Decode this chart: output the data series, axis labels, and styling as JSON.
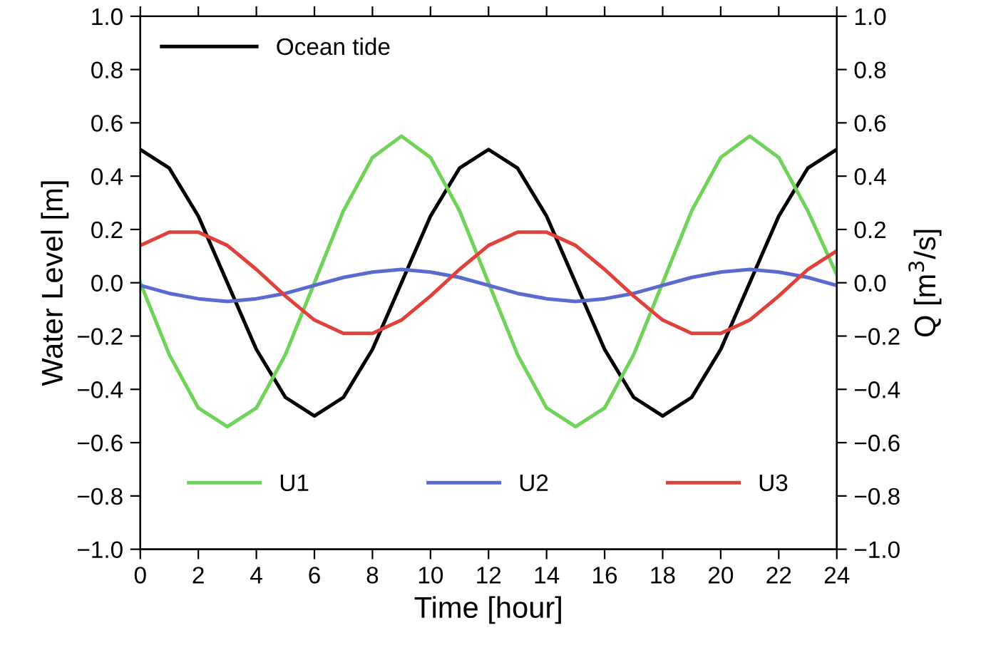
{
  "chart_data": {
    "type": "line",
    "xlabel": "Time [hour]",
    "ylabel": "Water Level [m]",
    "y2label": "Q [m$^{3}$/s]",
    "x": [
      0,
      1,
      2,
      3,
      4,
      5,
      6,
      7,
      8,
      9,
      10,
      11,
      12,
      13,
      14,
      15,
      16,
      17,
      18,
      19,
      20,
      21,
      22,
      23,
      24
    ],
    "series": [
      {
        "name": "Ocean tide",
        "color": "#000000",
        "values": [
          0.5,
          0.43,
          0.25,
          0,
          -0.25,
          -0.43,
          -0.5,
          -0.43,
          -0.25,
          0,
          0.25,
          0.43,
          0.5,
          0.43,
          0.25,
          0,
          -0.25,
          -0.43,
          -0.5,
          -0.43,
          -0.25,
          0,
          0.25,
          0.43,
          0.5
        ]
      },
      {
        "name": "U1",
        "color": "#6fd35a",
        "axis": "y2",
        "values": [
          0,
          -0.27,
          -0.47,
          -0.54,
          -0.47,
          -0.27,
          0,
          0.27,
          0.47,
          0.55,
          0.47,
          0.27,
          0,
          -0.27,
          -0.47,
          -0.54,
          -0.47,
          -0.27,
          0,
          0.27,
          0.47,
          0.55,
          0.47,
          0.27,
          0.03
        ]
      },
      {
        "name": "U2",
        "color": "#5a6ad0",
        "axis": "y2",
        "values": [
          -0.01,
          -0.04,
          -0.06,
          -0.07,
          -0.06,
          -0.04,
          -0.01,
          0.02,
          0.04,
          0.05,
          0.04,
          0.02,
          -0.01,
          -0.04,
          -0.06,
          -0.07,
          -0.06,
          -0.04,
          -0.01,
          0.02,
          0.04,
          0.05,
          0.04,
          0.02,
          -0.01
        ]
      },
      {
        "name": "U3",
        "color": "#e0413a",
        "axis": "y2",
        "values": [
          0.14,
          0.19,
          0.19,
          0.14,
          0.05,
          -0.05,
          -0.14,
          -0.19,
          -0.19,
          -0.14,
          -0.05,
          0.05,
          0.14,
          0.19,
          0.19,
          0.14,
          0.05,
          -0.05,
          -0.14,
          -0.19,
          -0.19,
          -0.14,
          -0.05,
          0.05,
          0.12
        ]
      }
    ],
    "xlim": [
      0,
      24
    ],
    "xticks": [
      0,
      2,
      4,
      6,
      8,
      10,
      12,
      14,
      16,
      18,
      20,
      22,
      24
    ],
    "ylim": [
      -1.0,
      1.0
    ],
    "yticks": [
      {
        "value": -1.0,
        "label": "−1.0"
      },
      {
        "value": -0.8,
        "label": "−0.8"
      },
      {
        "value": -0.6,
        "label": "−0.6"
      },
      {
        "value": -0.4,
        "label": "−0.4"
      },
      {
        "value": -0.2,
        "label": "−0.2"
      },
      {
        "value": 0.0,
        "label": "0.0"
      },
      {
        "value": 0.2,
        "label": "0.2"
      },
      {
        "value": 0.4,
        "label": "0.4"
      },
      {
        "value": 0.6,
        "label": "0.6"
      },
      {
        "value": 0.8,
        "label": "0.8"
      },
      {
        "value": 1.0,
        "label": "1.0"
      }
    ],
    "y2lim": [
      -1.0,
      1.0
    ],
    "y2ticks": [
      {
        "value": -1.0,
        "label": "−1.0"
      },
      {
        "value": -0.8,
        "label": "−0.8"
      },
      {
        "value": -0.6,
        "label": "−0.6"
      },
      {
        "value": -0.4,
        "label": "−0.4"
      },
      {
        "value": -0.2,
        "label": "−0.2"
      },
      {
        "value": 0.0,
        "label": "0.0"
      },
      {
        "value": 0.2,
        "label": "0.2"
      },
      {
        "value": 0.4,
        "label": "0.4"
      },
      {
        "value": 0.6,
        "label": "0.6"
      },
      {
        "value": 0.8,
        "label": "0.8"
      },
      {
        "value": 1.0,
        "label": "1.0"
      }
    ],
    "legend": "top left",
    "grid": false,
    "line_style": "solid",
    "marker": "none"
  }
}
